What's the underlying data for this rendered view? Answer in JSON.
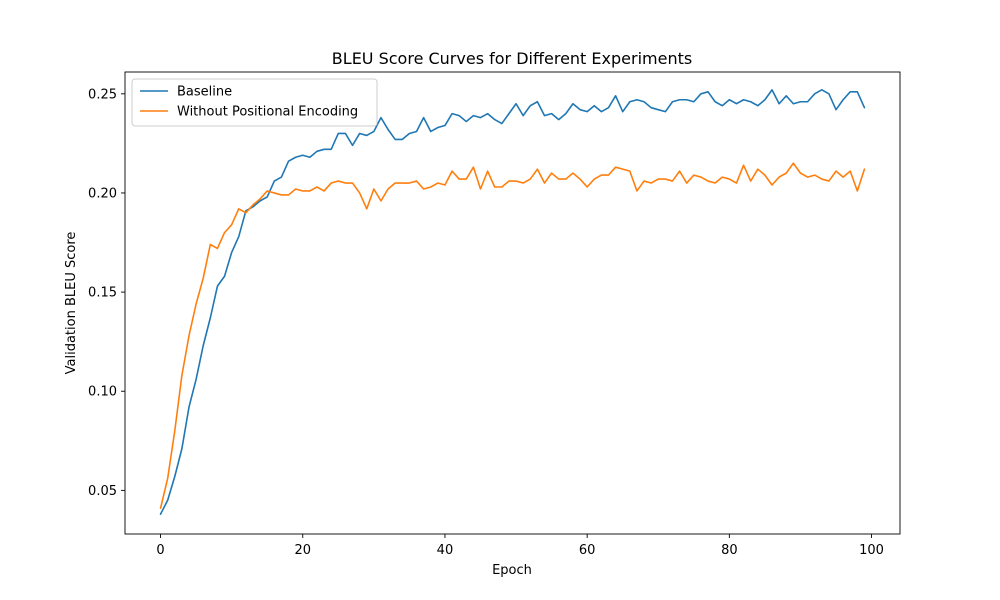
{
  "chart_data": {
    "type": "line",
    "title": "BLEU Score Curves for Different Experiments",
    "xlabel": "Epoch",
    "ylabel": "Validation BLEU Score",
    "xlim": [
      -5,
      104
    ],
    "ylim": [
      0.028,
      0.261
    ],
    "xticks": [
      0,
      20,
      40,
      60,
      80,
      100
    ],
    "yticks": [
      0.05,
      0.1,
      0.15,
      0.2,
      0.25
    ],
    "grid": false,
    "legend_position": "top-left",
    "series": [
      {
        "name": "Baseline",
        "color": "#1f77b4",
        "x": [
          0,
          1,
          2,
          3,
          4,
          5,
          6,
          7,
          8,
          9,
          10,
          11,
          12,
          13,
          14,
          15,
          16,
          17,
          18,
          19,
          20,
          21,
          22,
          23,
          24,
          25,
          26,
          27,
          28,
          29,
          30,
          31,
          32,
          33,
          34,
          35,
          36,
          37,
          38,
          39,
          40,
          41,
          42,
          43,
          44,
          45,
          46,
          47,
          48,
          49,
          50,
          51,
          52,
          53,
          54,
          55,
          56,
          57,
          58,
          59,
          60,
          61,
          62,
          63,
          64,
          65,
          66,
          67,
          68,
          69,
          70,
          71,
          72,
          73,
          74,
          75,
          76,
          77,
          78,
          79,
          80,
          81,
          82,
          83,
          84,
          85,
          86,
          87,
          88,
          89,
          90,
          91,
          92,
          93,
          94,
          95,
          96,
          97,
          98,
          99
        ],
        "values": [
          0.038,
          0.045,
          0.057,
          0.071,
          0.092,
          0.106,
          0.123,
          0.137,
          0.153,
          0.158,
          0.17,
          0.178,
          0.191,
          0.193,
          0.196,
          0.198,
          0.206,
          0.208,
          0.216,
          0.218,
          0.219,
          0.218,
          0.221,
          0.222,
          0.222,
          0.23,
          0.23,
          0.224,
          0.23,
          0.229,
          0.231,
          0.238,
          0.232,
          0.227,
          0.227,
          0.23,
          0.231,
          0.238,
          0.231,
          0.233,
          0.234,
          0.24,
          0.239,
          0.236,
          0.239,
          0.238,
          0.24,
          0.237,
          0.235,
          0.24,
          0.245,
          0.239,
          0.244,
          0.246,
          0.239,
          0.24,
          0.237,
          0.24,
          0.245,
          0.242,
          0.241,
          0.244,
          0.241,
          0.243,
          0.249,
          0.241,
          0.246,
          0.247,
          0.246,
          0.243,
          0.242,
          0.241,
          0.246,
          0.247,
          0.247,
          0.246,
          0.25,
          0.251,
          0.246,
          0.244,
          0.247,
          0.245,
          0.247,
          0.246,
          0.244,
          0.247,
          0.252,
          0.245,
          0.249,
          0.245,
          0.246,
          0.246,
          0.25,
          0.252,
          0.25,
          0.242,
          0.247,
          0.251,
          0.251,
          0.243
        ]
      },
      {
        "name": "Without Positional Encoding",
        "color": "#ff7f0e",
        "x": [
          0,
          1,
          2,
          3,
          4,
          5,
          6,
          7,
          8,
          9,
          10,
          11,
          12,
          13,
          14,
          15,
          16,
          17,
          18,
          19,
          20,
          21,
          22,
          23,
          24,
          25,
          26,
          27,
          28,
          29,
          30,
          31,
          32,
          33,
          34,
          35,
          36,
          37,
          38,
          39,
          40,
          41,
          42,
          43,
          44,
          45,
          46,
          47,
          48,
          49,
          50,
          51,
          52,
          53,
          54,
          55,
          56,
          57,
          58,
          59,
          60,
          61,
          62,
          63,
          64,
          65,
          66,
          67,
          68,
          69,
          70,
          71,
          72,
          73,
          74,
          75,
          76,
          77,
          78,
          79,
          80,
          81,
          82,
          83,
          84,
          85,
          86,
          87,
          88,
          89,
          90,
          91,
          92,
          93,
          94,
          95,
          96,
          97,
          98,
          99
        ],
        "values": [
          0.041,
          0.056,
          0.08,
          0.108,
          0.128,
          0.144,
          0.157,
          0.174,
          0.172,
          0.18,
          0.184,
          0.192,
          0.19,
          0.194,
          0.197,
          0.201,
          0.2,
          0.199,
          0.199,
          0.202,
          0.201,
          0.201,
          0.203,
          0.201,
          0.205,
          0.206,
          0.205,
          0.205,
          0.2,
          0.192,
          0.202,
          0.196,
          0.202,
          0.205,
          0.205,
          0.205,
          0.206,
          0.202,
          0.203,
          0.205,
          0.204,
          0.211,
          0.207,
          0.207,
          0.213,
          0.202,
          0.211,
          0.203,
          0.203,
          0.206,
          0.206,
          0.205,
          0.207,
          0.212,
          0.205,
          0.21,
          0.207,
          0.207,
          0.21,
          0.207,
          0.203,
          0.207,
          0.209,
          0.209,
          0.213,
          0.212,
          0.211,
          0.201,
          0.206,
          0.205,
          0.207,
          0.207,
          0.206,
          0.211,
          0.205,
          0.209,
          0.208,
          0.206,
          0.205,
          0.208,
          0.207,
          0.205,
          0.214,
          0.206,
          0.212,
          0.209,
          0.204,
          0.208,
          0.21,
          0.215,
          0.21,
          0.208,
          0.209,
          0.207,
          0.206,
          0.211,
          0.208,
          0.211,
          0.201,
          0.212
        ]
      }
    ]
  }
}
